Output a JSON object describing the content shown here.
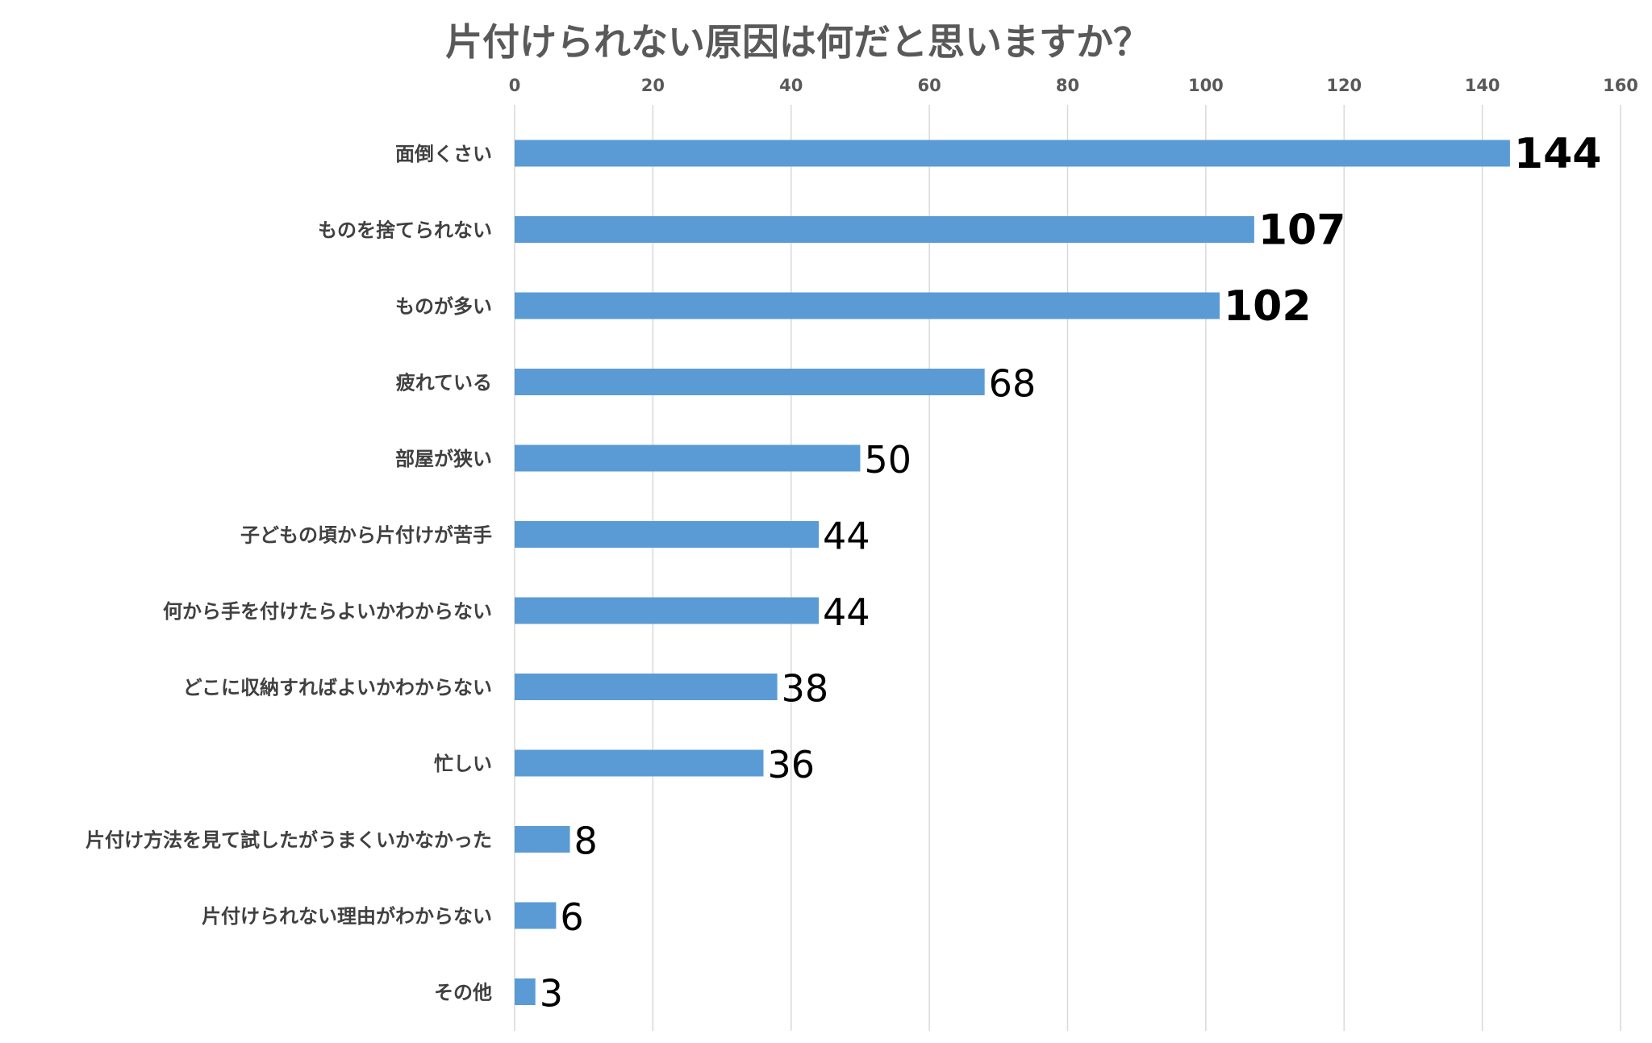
{
  "chart_data": {
    "type": "bar",
    "orientation": "horizontal",
    "title": "片付けられない原因は何だと思いますか？",
    "categories": [
      "面倒くさい",
      "ものを捨てられない",
      "ものが多い",
      "疲れている",
      "部屋が狭い",
      "子どもの頃から片付けが苦手",
      "何から手を付けたらよいかわからない",
      "どこに収納すればよいかわからない",
      "忙しい",
      "片付け方法を見て試したがうまくいかなかった",
      "片付けられない理由がわからない",
      "その他"
    ],
    "values": [
      144,
      107,
      102,
      68,
      50,
      44,
      44,
      38,
      36,
      8,
      6,
      3
    ],
    "xlim": [
      0,
      160
    ],
    "x_ticks": [
      "0",
      "20",
      "40",
      "60",
      "80",
      "100",
      "120",
      "140",
      "160"
    ],
    "axis_position": "top",
    "grid": true,
    "legend": "none",
    "bar_color": "#5b9bd5",
    "highlight_top": 3
  }
}
